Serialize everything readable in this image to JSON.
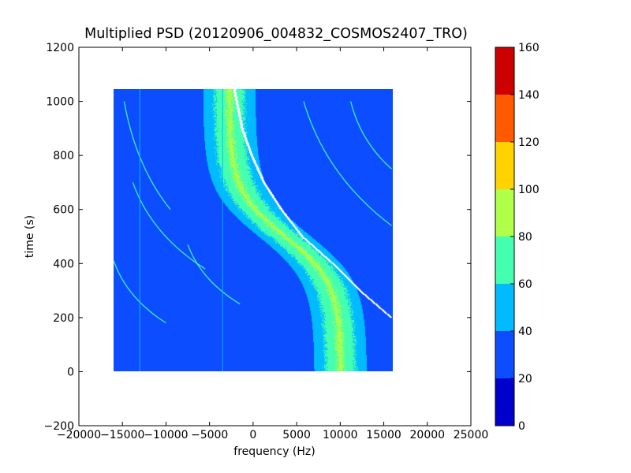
{
  "chart_data": {
    "type": "heatmap",
    "title": "Multiplied PSD (20120906_004832_COSMOS2407_TRO)",
    "xlabel": "frequency (Hz)",
    "ylabel": "time (s)",
    "xlim": [
      -20000,
      25000
    ],
    "ylim": [
      -200,
      1200
    ],
    "x_ticks": [
      -20000,
      -15000,
      -10000,
      -5000,
      0,
      5000,
      10000,
      15000,
      20000,
      25000
    ],
    "x_tick_labels": [
      "−20000",
      "−15000",
      "−10000",
      "−5000",
      "0",
      "5000",
      "10000",
      "15000",
      "20000",
      "25000"
    ],
    "y_ticks": [
      -200,
      0,
      200,
      400,
      600,
      800,
      1000,
      1200
    ],
    "y_tick_labels": [
      "−200",
      "0",
      "200",
      "400",
      "600",
      "800",
      "1000",
      "1200"
    ],
    "data_extent": {
      "x": [
        -16000,
        16000
      ],
      "y": [
        0,
        1045
      ]
    },
    "background_level": 25,
    "main_trace": {
      "center_top_freq": -2800,
      "center_bottom_freq": 10000,
      "mid_time": 500,
      "width_hz": 5000,
      "peak_level": 85
    },
    "satellite_trace_freq_at_time": [
      [
        200,
        15800
      ],
      [
        300,
        12200
      ],
      [
        400,
        9100
      ],
      [
        500,
        5600
      ],
      [
        600,
        3200
      ],
      [
        700,
        1200
      ],
      [
        800,
        -200
      ],
      [
        900,
        -1300
      ],
      [
        1045,
        -2200
      ]
    ],
    "secondary_traces": [
      {
        "t0": 1000,
        "f0": -14800,
        "t1": 600,
        "f1": -9500
      },
      {
        "t0": 700,
        "f0": -13800,
        "t1": 380,
        "f1": -5500
      },
      {
        "t0": 1000,
        "f0": 5800,
        "t1": 540,
        "f1": 15900
      },
      {
        "t0": 1000,
        "f0": 11200,
        "t1": 750,
        "f1": 15900
      },
      {
        "t0": 470,
        "f0": -7500,
        "t1": 250,
        "f1": -1500
      },
      {
        "t0": 410,
        "f0": -16000,
        "t1": 180,
        "f1": -10000
      }
    ],
    "vertical_lines": [
      -13000,
      -3500
    ],
    "colorbar": {
      "min": 0,
      "max": 160,
      "step": 20,
      "tick_labels": [
        "0",
        "20",
        "40",
        "60",
        "80",
        "100",
        "120",
        "140",
        "160"
      ],
      "bins": [
        {
          "from": 0,
          "to": 20,
          "color": "#0000cc"
        },
        {
          "from": 20,
          "to": 40,
          "color": "#0c4dff"
        },
        {
          "from": 40,
          "to": 60,
          "color": "#00bbff"
        },
        {
          "from": 60,
          "to": 80,
          "color": "#44ffb0"
        },
        {
          "from": 80,
          "to": 100,
          "color": "#b0ff48"
        },
        {
          "from": 100,
          "to": 120,
          "color": "#ffd200"
        },
        {
          "from": 120,
          "to": 140,
          "color": "#ff5a00"
        },
        {
          "from": 140,
          "to": 160,
          "color": "#cc0000"
        }
      ]
    }
  }
}
